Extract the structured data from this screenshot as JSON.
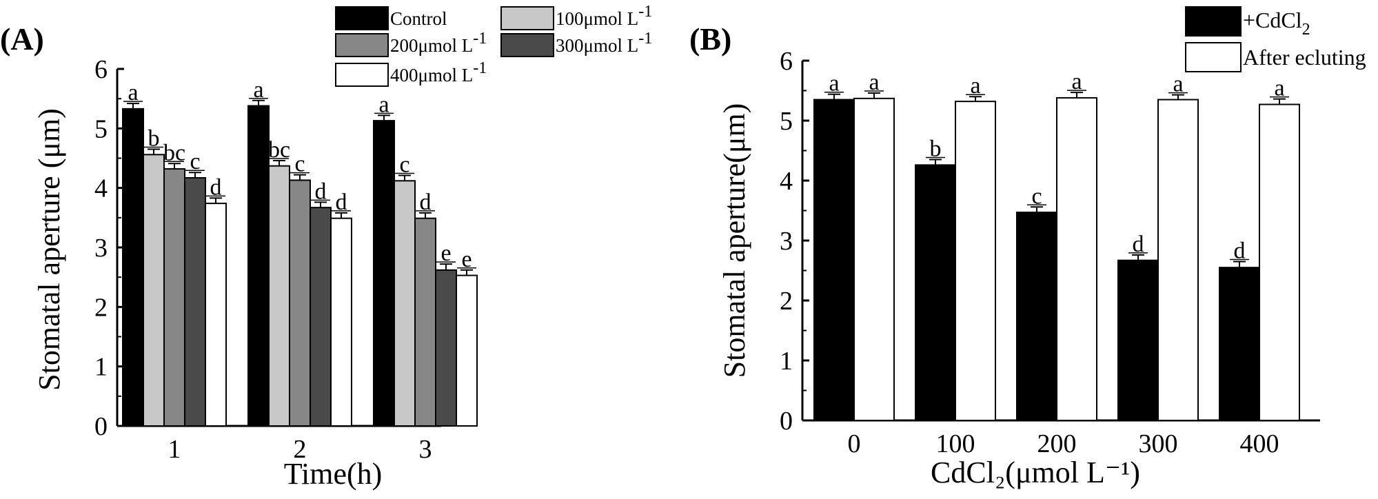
{
  "chart_data": [
    {
      "panel_label": "(A)",
      "type": "bar",
      "xlabel": "Time(h)",
      "ylabel": "Stomatal aperture (μm)",
      "ylim": [
        0,
        6
      ],
      "yticks": [
        "0",
        "1",
        "2",
        "3",
        "4",
        "5",
        "6"
      ],
      "categories": [
        "1",
        "2",
        "3"
      ],
      "series": [
        {
          "name": "Control",
          "color": "#000000",
          "values": [
            5.33,
            5.38,
            5.13
          ],
          "errors": [
            0.09,
            0.09,
            0.09
          ],
          "letters": [
            "a",
            "a",
            "a"
          ]
        },
        {
          "name": "100μmol L⁻¹",
          "color": "#c8c8c8",
          "values": [
            4.56,
            4.37,
            4.12
          ],
          "errors": [
            0.09,
            0.09,
            0.09
          ],
          "letters": [
            "b",
            "bc",
            "c"
          ]
        },
        {
          "name": "200μmol L⁻¹",
          "color": "#878787",
          "values": [
            4.32,
            4.13,
            3.49
          ],
          "errors": [
            0.09,
            0.09,
            0.09
          ],
          "letters": [
            "bc",
            "c",
            "d"
          ]
        },
        {
          "name": "300μmol L⁻¹",
          "color": "#4a4a4a",
          "values": [
            4.17,
            3.67,
            2.62
          ],
          "errors": [
            0.09,
            0.09,
            0.1
          ],
          "letters": [
            "c",
            "d",
            "e"
          ]
        },
        {
          "name": "400μmol L⁻¹",
          "color": "#ffffff",
          "values": [
            3.74,
            3.49,
            2.53
          ],
          "errors": [
            0.09,
            0.09,
            0.09
          ],
          "letters": [
            "d",
            "d",
            "e"
          ]
        }
      ],
      "legend": [
        {
          "text": "Control"
        },
        {
          "text": "100μmol L",
          "sup": "-1"
        },
        {
          "text": "200μmol L",
          "sup": "-1"
        },
        {
          "text": "300μmol L",
          "sup": "-1"
        },
        {
          "text": "400μmol L",
          "sup": "-1"
        }
      ]
    },
    {
      "panel_label": "(B)",
      "type": "bar",
      "xlabel": "CdCl₂(μmol L⁻¹)",
      "ylabel": "Stomatal aperture(μm)",
      "ylim": [
        0,
        6
      ],
      "yticks": [
        "0",
        "1",
        "2",
        "3",
        "4",
        "5",
        "6"
      ],
      "categories": [
        "0",
        "100",
        "200",
        "300",
        "400"
      ],
      "series": [
        {
          "name": "+CdCl₂",
          "color": "#000000",
          "values": [
            5.35,
            4.26,
            3.47,
            2.67,
            2.55
          ],
          "errors": [
            0.09,
            0.09,
            0.09,
            0.09,
            0.1
          ],
          "letters": [
            "a",
            "b",
            "c",
            "d",
            "d"
          ]
        },
        {
          "name": "After ecluting",
          "color": "#ffffff",
          "values": [
            5.37,
            5.32,
            5.38,
            5.35,
            5.27
          ],
          "errors": [
            0.09,
            0.08,
            0.09,
            0.08,
            0.09
          ],
          "letters": [
            "a",
            "a",
            "a",
            "a",
            "a"
          ]
        }
      ],
      "legend": [
        {
          "text": "+CdCl",
          "sub": "2"
        },
        {
          "text": "After ecluting"
        }
      ]
    }
  ]
}
